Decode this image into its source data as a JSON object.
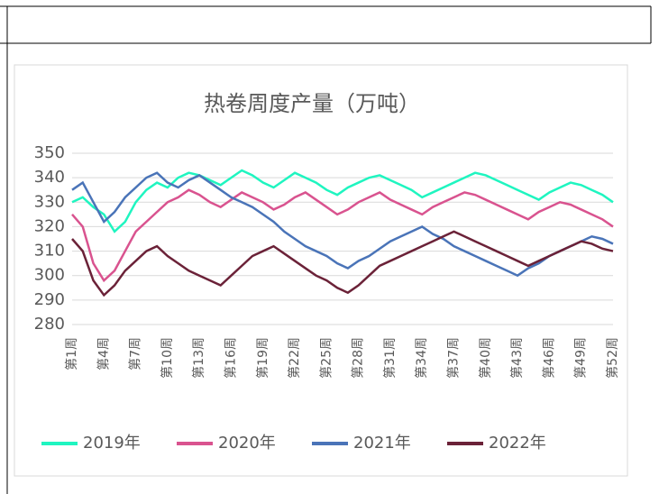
{
  "chart_data": {
    "type": "line",
    "title": "热卷周度产量（万吨）",
    "categories": [
      "第1周",
      null,
      null,
      "第4周",
      null,
      null,
      "第7周",
      null,
      null,
      "第10周",
      null,
      null,
      "第13周",
      null,
      null,
      "第16周",
      null,
      null,
      "第19周",
      null,
      null,
      "第22周",
      null,
      null,
      "第25周",
      null,
      null,
      "第28周",
      null,
      null,
      "第31周",
      null,
      null,
      "第34周",
      null,
      null,
      "第37周",
      null,
      null,
      "第40周",
      null,
      null,
      "第43周",
      null,
      null,
      "第46周",
      null,
      null,
      "第49周",
      null,
      null,
      "第52周"
    ],
    "series": [
      {
        "name": "2019年",
        "color": "#1ff5c0",
        "values": [
          330,
          332,
          328,
          325,
          318,
          322,
          330,
          335,
          338,
          336,
          340,
          342,
          341,
          339,
          337,
          340,
          343,
          341,
          338,
          336,
          339,
          342,
          340,
          338,
          335,
          333,
          336,
          338,
          340,
          341,
          339,
          337,
          335,
          332,
          334,
          336,
          338,
          340,
          342,
          341,
          339,
          337,
          335,
          333,
          331,
          334,
          336,
          338,
          337,
          335,
          333,
          330
        ]
      },
      {
        "name": "2020年",
        "color": "#d9538f",
        "values": [
          325,
          320,
          305,
          298,
          302,
          310,
          318,
          322,
          326,
          330,
          332,
          335,
          333,
          330,
          328,
          331,
          334,
          332,
          330,
          327,
          329,
          332,
          334,
          331,
          328,
          325,
          327,
          330,
          332,
          334,
          331,
          329,
          327,
          325,
          328,
          330,
          332,
          334,
          333,
          331,
          329,
          327,
          325,
          323,
          326,
          328,
          330,
          329,
          327,
          325,
          323,
          320
        ]
      },
      {
        "name": "2021年",
        "color": "#4a74b8",
        "values": [
          335,
          338,
          330,
          322,
          326,
          332,
          336,
          340,
          342,
          338,
          336,
          339,
          341,
          338,
          335,
          332,
          330,
          328,
          325,
          322,
          318,
          315,
          312,
          310,
          308,
          305,
          303,
          306,
          308,
          311,
          314,
          316,
          318,
          320,
          317,
          315,
          312,
          310,
          308,
          306,
          304,
          302,
          300,
          303,
          305,
          308,
          310,
          312,
          314,
          316,
          315,
          313
        ]
      },
      {
        "name": "2022年",
        "color": "#6b2238",
        "values": [
          315,
          310,
          298,
          292,
          296,
          302,
          306,
          310,
          312,
          308,
          305,
          302,
          300,
          298,
          296,
          300,
          304,
          308,
          310,
          312,
          309,
          306,
          303,
          300,
          298,
          295,
          293,
          296,
          300,
          304,
          306,
          308,
          310,
          312,
          314,
          316,
          318,
          316,
          314,
          312,
          310,
          308,
          306,
          304,
          306,
          308,
          310,
          312,
          314,
          313,
          311,
          310
        ]
      }
    ],
    "ylim": [
      280,
      350
    ],
    "yticks": [
      280,
      290,
      300,
      310,
      320,
      330,
      340,
      350
    ],
    "grid": true
  }
}
